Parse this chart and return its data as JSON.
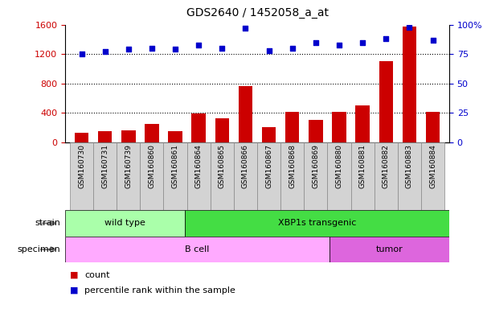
{
  "title": "GDS2640 / 1452058_a_at",
  "samples": [
    "GSM160730",
    "GSM160731",
    "GSM160739",
    "GSM160860",
    "GSM160861",
    "GSM160864",
    "GSM160865",
    "GSM160866",
    "GSM160867",
    "GSM160868",
    "GSM160869",
    "GSM160880",
    "GSM160881",
    "GSM160882",
    "GSM160883",
    "GSM160884"
  ],
  "counts": [
    130,
    155,
    160,
    245,
    155,
    390,
    330,
    760,
    200,
    415,
    300,
    415,
    500,
    1100,
    1570,
    415
  ],
  "percentiles": [
    75,
    77,
    79,
    80,
    79,
    83,
    80,
    97,
    78,
    80,
    85,
    83,
    85,
    88,
    98,
    87
  ],
  "bar_color": "#cc0000",
  "dot_color": "#0000cc",
  "ylim_left": [
    0,
    1600
  ],
  "ylim_right": [
    0,
    100
  ],
  "yticks_left": [
    0,
    400,
    800,
    1200,
    1600
  ],
  "yticks_right": [
    0,
    25,
    50,
    75,
    100
  ],
  "grid_values": [
    400,
    800,
    1200
  ],
  "strain_groups": [
    {
      "label": "wild type",
      "start": 0,
      "end": 5,
      "color": "#aaffaa"
    },
    {
      "label": "XBP1s transgenic",
      "start": 5,
      "end": 16,
      "color": "#44dd44"
    }
  ],
  "specimen_groups": [
    {
      "label": "B cell",
      "start": 0,
      "end": 11,
      "color": "#ffaaff"
    },
    {
      "label": "tumor",
      "start": 11,
      "end": 16,
      "color": "#dd66dd"
    }
  ],
  "right_axis_color": "#0000cc",
  "left_axis_color": "#cc0000",
  "tick_label_bg": "#d3d3d3",
  "strain_label": "strain",
  "specimen_label": "specimen",
  "bg_color": "#ffffff"
}
